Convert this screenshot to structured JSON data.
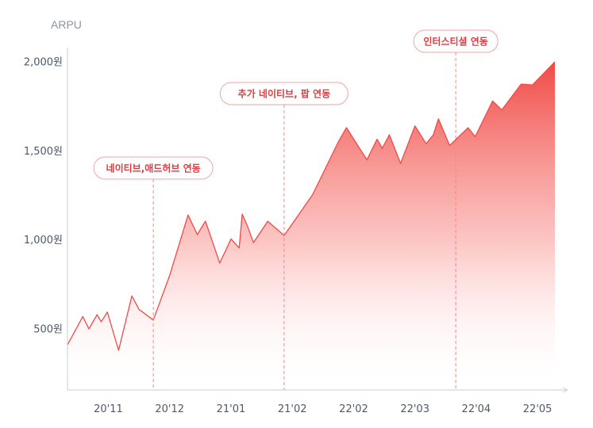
{
  "chart_data": {
    "type": "area",
    "ylabel": "ARPU",
    "y_ticks": [
      {
        "value": 500,
        "label": "500원"
      },
      {
        "value": 1000,
        "label": "1,000원"
      },
      {
        "value": 1500,
        "label": "1,500원"
      },
      {
        "value": 2000,
        "label": "2,000원"
      }
    ],
    "x_ticks": [
      {
        "x": 4,
        "label": "20'11"
      },
      {
        "x": 10,
        "label": "20'12"
      },
      {
        "x": 16,
        "label": "21'01"
      },
      {
        "x": 22,
        "label": "21'02"
      },
      {
        "x": 28,
        "label": "22'02"
      },
      {
        "x": 34,
        "label": "22'03"
      },
      {
        "x": 40,
        "label": "22'04"
      },
      {
        "x": 46,
        "label": "22'05"
      }
    ],
    "xlim": [
      0,
      48.5
    ],
    "ylim": [
      250,
      2100
    ],
    "series": [
      {
        "color": "#f04a45",
        "points": [
          [
            0,
            410
          ],
          [
            1.5,
            570
          ],
          [
            2.1,
            500
          ],
          [
            2.9,
            580
          ],
          [
            3.3,
            540
          ],
          [
            3.9,
            595
          ],
          [
            5.0,
            380
          ],
          [
            6.3,
            685
          ],
          [
            7.0,
            610
          ],
          [
            8.4,
            550
          ],
          [
            10.0,
            800
          ],
          [
            11.8,
            1140
          ],
          [
            12.7,
            1030
          ],
          [
            13.5,
            1105
          ],
          [
            14.9,
            870
          ],
          [
            16.0,
            1005
          ],
          [
            16.8,
            955
          ],
          [
            17.1,
            1145
          ],
          [
            17.6,
            1080
          ],
          [
            18.2,
            985
          ],
          [
            19.6,
            1105
          ],
          [
            21.2,
            1025
          ],
          [
            24.0,
            1255
          ],
          [
            26.5,
            1550
          ],
          [
            27.3,
            1630
          ],
          [
            29.3,
            1450
          ],
          [
            30.3,
            1565
          ],
          [
            30.8,
            1515
          ],
          [
            31.5,
            1590
          ],
          [
            32.6,
            1430
          ],
          [
            34.0,
            1640
          ],
          [
            35.1,
            1540
          ],
          [
            35.8,
            1590
          ],
          [
            36.3,
            1680
          ],
          [
            37.4,
            1530
          ],
          [
            39.2,
            1630
          ],
          [
            39.9,
            1580
          ],
          [
            41.6,
            1780
          ],
          [
            42.5,
            1730
          ],
          [
            44.4,
            1875
          ],
          [
            45.5,
            1870
          ],
          [
            47.7,
            2000
          ]
        ]
      }
    ],
    "annotations": [
      {
        "x": 8.4,
        "label": "네이티브,애드허브 연동"
      },
      {
        "x": 21.2,
        "label": "추가 네이티브, 팝 연동"
      },
      {
        "x": 38.0,
        "label": "인터스티셜 연동"
      }
    ],
    "grid": false,
    "colors": {
      "line": "#f04a45",
      "fill_top": "#f04a45",
      "annotation_border": "#f2a6a6",
      "annotation_text": "#e03a3e",
      "axis": "#c9cfd6",
      "tick_text": "#4e5968",
      "axis_title": "#8b95a1"
    }
  }
}
